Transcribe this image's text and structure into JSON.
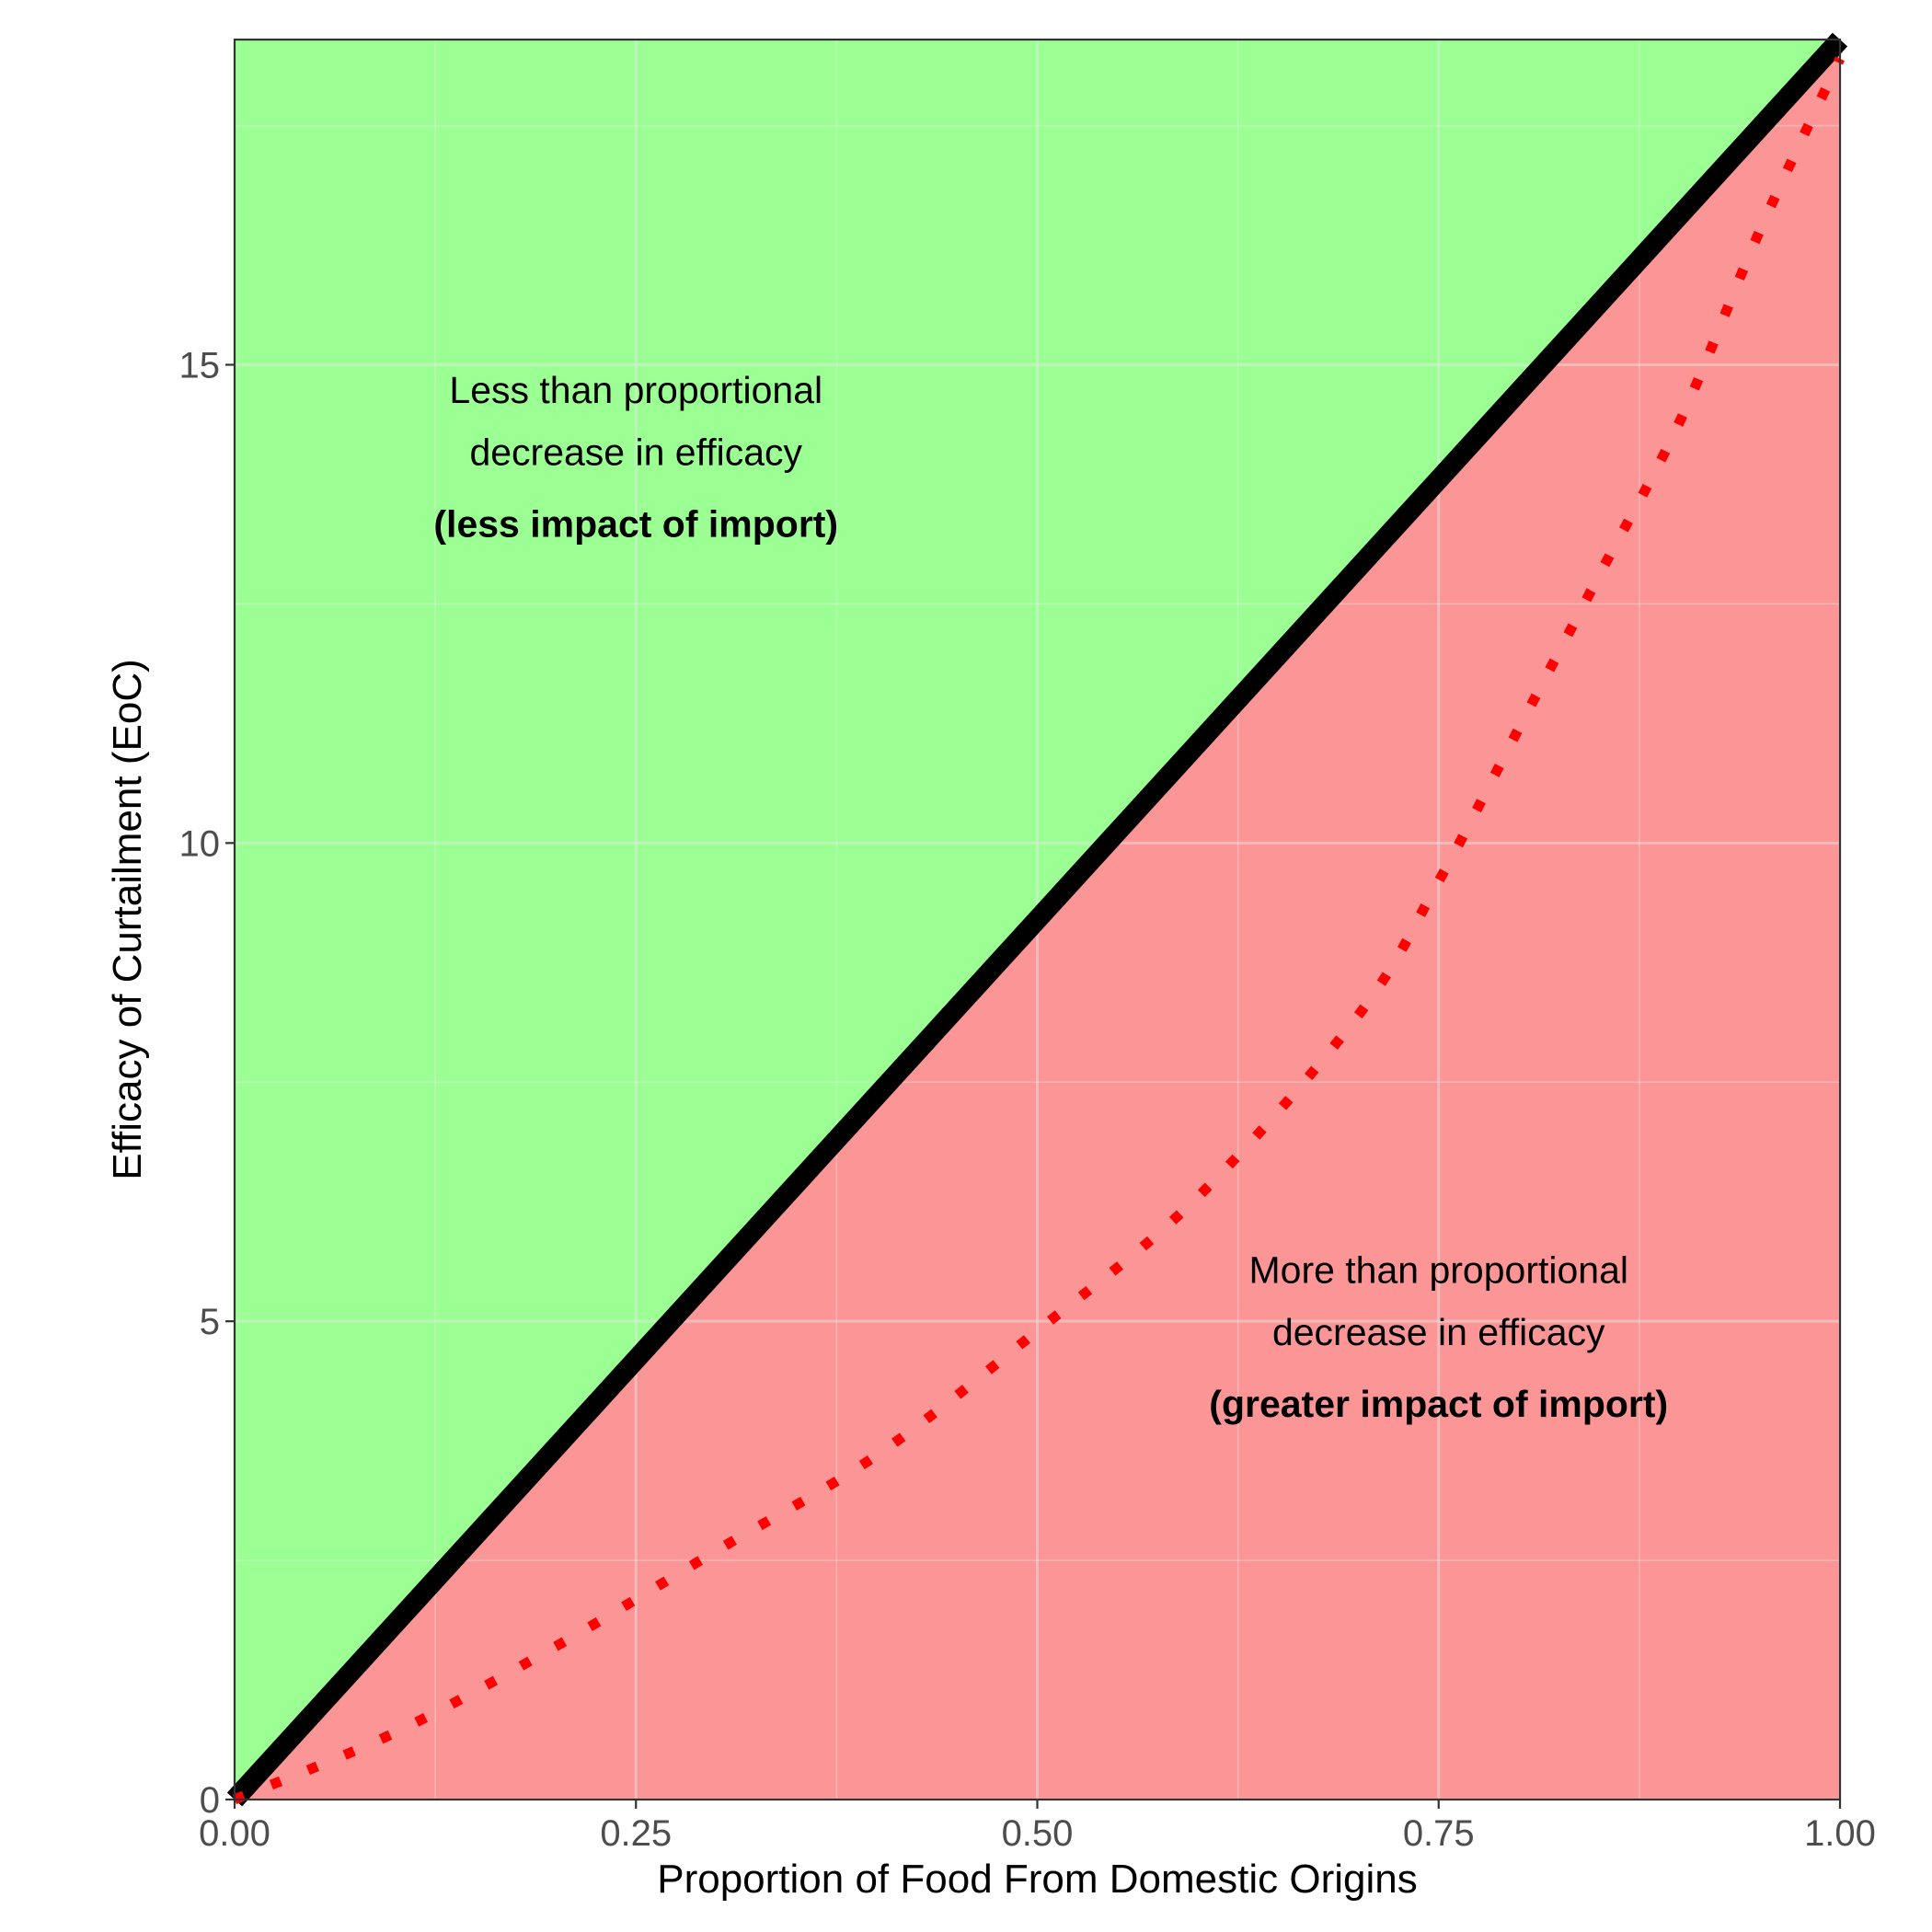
{
  "chart_data": {
    "type": "area",
    "xlabel": "Proportion of Food From Domestic Origins",
    "ylabel": "Efficacy of Curtailment (EoC)",
    "xlim": [
      0,
      1
    ],
    "ylim": [
      0,
      18.4
    ],
    "x_ticks": [
      0,
      0.25,
      0.5,
      0.75,
      1
    ],
    "x_tick_labels": [
      "0.00",
      "0.25",
      "0.50",
      "0.75",
      "1.00"
    ],
    "y_ticks": [
      0,
      5,
      10,
      15
    ],
    "y_tick_labels": [
      "0",
      "5",
      "10",
      "15"
    ],
    "grid": true,
    "colors": {
      "upper_region": "#9cff94",
      "lower_region": "#fc9696",
      "proportional_line": "#000000",
      "example_curve": "#ff0000",
      "major_grid": "#e6e6e6",
      "minor_grid": "#f0f0f0"
    },
    "series": [
      {
        "style": "solid-thick",
        "x": [
          0,
          1
        ],
        "y": [
          0,
          18.4
        ]
      },
      {
        "style": "dotted",
        "x": [
          0,
          0.1,
          0.2,
          0.3,
          0.4,
          0.5,
          0.6,
          0.7,
          0.75,
          0.8,
          0.85,
          0.9,
          0.95,
          1
        ],
        "y": [
          0,
          0.7,
          1.6,
          2.6,
          3.6,
          4.9,
          6.3,
          8.2,
          9.6,
          11.2,
          12.8,
          14.4,
          16.4,
          18.2
        ]
      }
    ],
    "annotations": [
      {
        "region": "upper",
        "lines": [
          "Less than proportional",
          "decrease in efficacy",
          "(less impact of import)"
        ],
        "x": 0.25,
        "y": [
          14.6,
          13.95,
          13.2
        ]
      },
      {
        "region": "lower",
        "lines": [
          "More than proportional",
          "decrease in efficacy",
          "(greater impact of import)"
        ],
        "x": 0.75,
        "y": [
          5.4,
          4.75,
          4.0
        ]
      }
    ]
  }
}
